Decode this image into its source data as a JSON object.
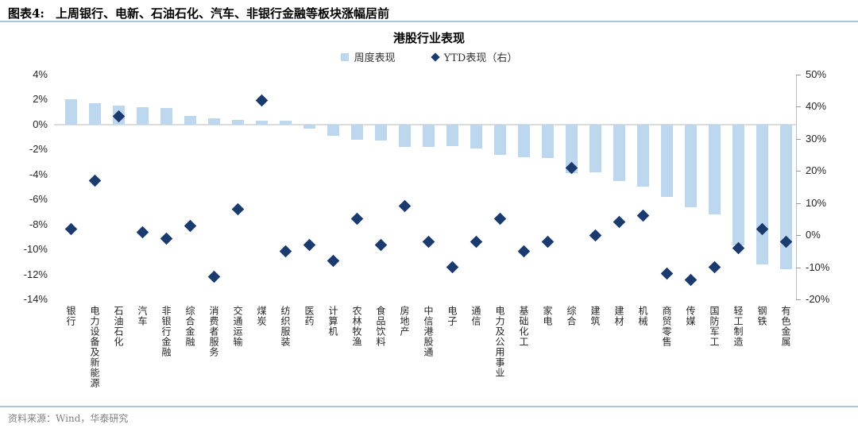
{
  "header": {
    "figure_label": "图表4:",
    "title": "上周银行、电新、石油石化、汽车、非银行金融等板块涨幅居前"
  },
  "chart": {
    "title": "港股行业表现"
  },
  "legend": [
    {
      "label": "周度表现",
      "marker": "square",
      "color": "#bdd7ee"
    },
    {
      "label": "YTD表现（右）",
      "marker": "diamond",
      "color": "#1b3b6f"
    }
  ],
  "footer": {
    "source": "资料来源：Wind，华泰研究"
  },
  "chart_data": {
    "type": "bar",
    "title": "港股行业表现",
    "categories": [
      "银行",
      "电力设备及新能源",
      "石油石化",
      "汽车",
      "非银行金融",
      "综合金融",
      "消费者服务",
      "交通运输",
      "煤炭",
      "纺织服装",
      "医药",
      "计算机",
      "农林牧渔",
      "食品饮料",
      "房地产",
      "中信港股通",
      "电子",
      "通信",
      "电力及公用事业",
      "基础化工",
      "家电",
      "综合",
      "建筑",
      "建材",
      "机械",
      "商贸零售",
      "传媒",
      "国防军工",
      "轻工制造",
      "钢铁",
      "有色金属"
    ],
    "series": [
      {
        "name": "周度表现",
        "type": "bar",
        "axis": "left",
        "unit": "%",
        "values": [
          2.0,
          1.7,
          1.5,
          1.4,
          1.3,
          0.7,
          0.5,
          0.4,
          0.3,
          0.3,
          -0.3,
          -0.9,
          -1.2,
          -1.3,
          -1.8,
          -1.8,
          -1.7,
          -1.9,
          -2.4,
          -2.6,
          -2.7,
          -3.9,
          -3.8,
          -4.5,
          -5.0,
          -5.8,
          -6.6,
          -7.2,
          -9.7,
          -11.2,
          -11.6
        ]
      },
      {
        "name": "YTD表现（右）",
        "type": "scatter",
        "axis": "right",
        "unit": "%",
        "values": [
          2,
          17,
          37,
          1,
          -1,
          3,
          -13,
          8,
          42,
          -5,
          -3,
          -8,
          5,
          -3,
          9,
          -2,
          -10,
          -2,
          5,
          -5,
          -2,
          21,
          0,
          4,
          6,
          -12,
          -14,
          -10,
          -4,
          2,
          -2
        ]
      }
    ],
    "left_axis": {
      "min": -14,
      "max": 4,
      "step": 2,
      "tick_format": "percent"
    },
    "right_axis": {
      "min": -20,
      "max": 50,
      "step": 10,
      "tick_format": "percent"
    },
    "grid": "zero-line-only",
    "legend_position": "top-center",
    "colors": {
      "bar": "#bdd7ee",
      "marker": "#1b3b6f"
    }
  }
}
